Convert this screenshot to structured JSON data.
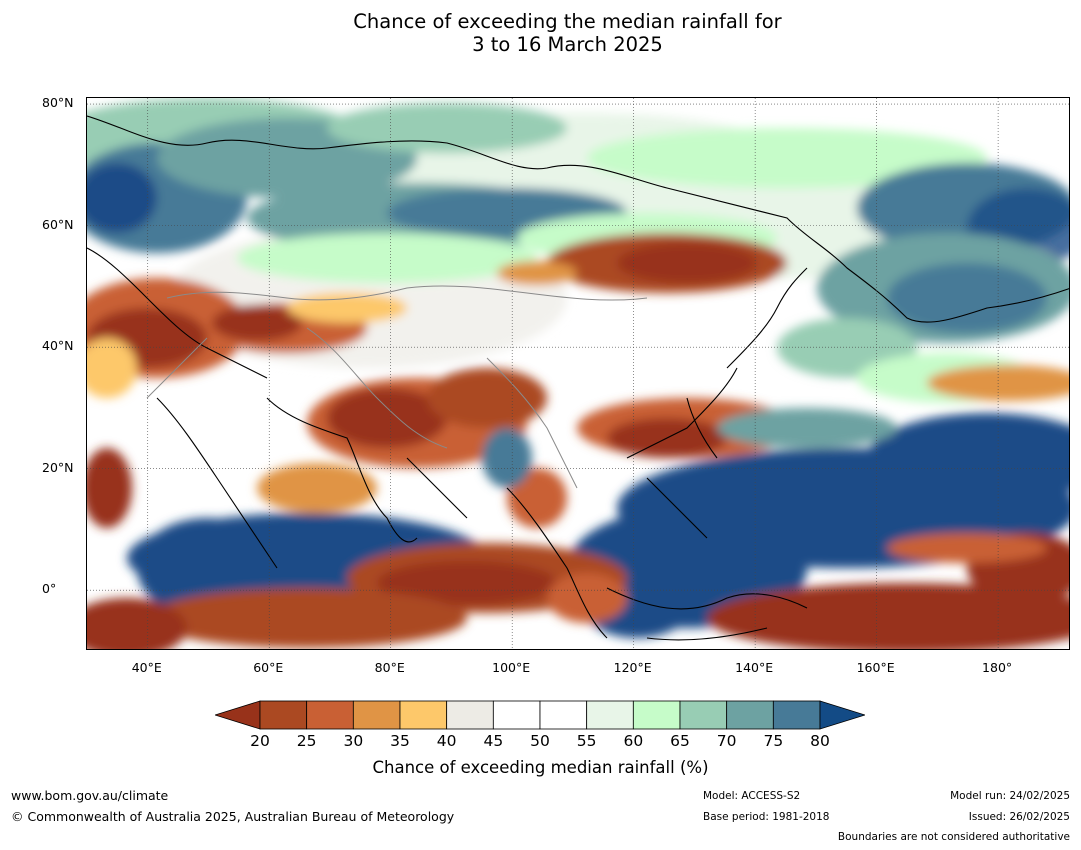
{
  "title": {
    "line1": "Chance of exceeding the median rainfall for",
    "line2": "3 to 16 March 2025"
  },
  "map": {
    "lat_labels": [
      "80°N",
      "60°N",
      "40°N",
      "20°N",
      "0°"
    ],
    "lon_labels": [
      "40°E",
      "60°E",
      "80°E",
      "100°E",
      "120°E",
      "140°E",
      "160°E",
      "180°"
    ],
    "extent": {
      "lon_min": 30,
      "lon_max": 192,
      "lat_min": -10,
      "lat_max": 81
    }
  },
  "colorbar": {
    "title": "Chance of exceeding median rainfall (%)",
    "ticks": [
      "20",
      "25",
      "30",
      "35",
      "40",
      "45",
      "50",
      "55",
      "60",
      "65",
      "70",
      "75",
      "80"
    ],
    "colors": [
      "#98321a",
      "#ab4922",
      "#c96034",
      "#e09445",
      "#fdc86a",
      "#edebe5",
      "#ffffff",
      "#ffffff",
      "#e8f5e8",
      "#c6fcc9",
      "#98cdb4",
      "#6da2a2",
      "#477a97",
      "#1a4b87"
    ],
    "under_color": "#98321a",
    "over_color": "#134b86"
  },
  "footer": {
    "url": "www.bom.gov.au/climate",
    "copyright": "© Commonwealth of Australia 2025, Australian Bureau of Meteorology",
    "model": "Model: ACCESS-S2",
    "base_period": "Base period: 1981-2018",
    "model_run": "Model run: 24/02/2025",
    "issued": "Issued: 26/02/2025",
    "disclaimer": "Boundaries are not considered authoritative"
  }
}
